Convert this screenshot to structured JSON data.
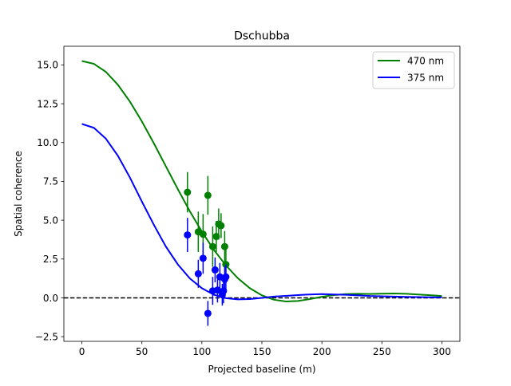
{
  "chart_data": {
    "type": "line",
    "title": "Dschubba",
    "xlabel": "Projected baseline (m)",
    "ylabel": "Spatial coherence",
    "xlim": [
      -15,
      315
    ],
    "ylim": [
      -2.8,
      16.2
    ],
    "xticks": [
      0,
      50,
      100,
      150,
      200,
      250,
      300
    ],
    "yticks": [
      -2.5,
      0.0,
      2.5,
      5.0,
      7.5,
      10.0,
      12.5,
      15.0
    ],
    "xtick_labels": [
      "0",
      "50",
      "100",
      "150",
      "200",
      "250",
      "300"
    ],
    "ytick_labels": [
      "−2.5",
      "0.0",
      "2.5",
      "5.0",
      "7.5",
      "10.0",
      "12.5",
      "15.0"
    ],
    "grid": false,
    "legend_position": "upper right",
    "reference_line": {
      "y": 0,
      "style": "dashed",
      "color": "#000000"
    },
    "series": [
      {
        "name": "470 nm",
        "color": "#008000",
        "model_curve": {
          "x": [
            0,
            10,
            20,
            30,
            40,
            50,
            60,
            70,
            80,
            90,
            100,
            110,
            120,
            130,
            140,
            150,
            160,
            170,
            180,
            190,
            200,
            210,
            220,
            230,
            240,
            250,
            260,
            270,
            280,
            290,
            300
          ],
          "y": [
            15.25,
            15.07,
            14.55,
            13.72,
            12.64,
            11.36,
            9.95,
            8.47,
            6.99,
            5.57,
            4.26,
            3.09,
            2.09,
            1.26,
            0.62,
            0.16,
            -0.12,
            -0.23,
            -0.2,
            -0.08,
            0.07,
            0.18,
            0.24,
            0.26,
            0.25,
            0.27,
            0.28,
            0.26,
            0.22,
            0.17,
            0.12
          ]
        },
        "points": [
          {
            "x": 88,
            "y": 6.8,
            "err": 1.3
          },
          {
            "x": 97,
            "y": 4.25,
            "err": 1.3
          },
          {
            "x": 101,
            "y": 4.1,
            "err": 1.3
          },
          {
            "x": 105,
            "y": 6.6,
            "err": 1.25
          },
          {
            "x": 109,
            "y": 3.3,
            "err": 1.3
          },
          {
            "x": 112,
            "y": 3.95,
            "err": 1.0
          },
          {
            "x": 114,
            "y": 4.75,
            "err": 1.0
          },
          {
            "x": 116,
            "y": 4.65,
            "err": 0.8
          },
          {
            "x": 119,
            "y": 3.3,
            "err": 1.0
          },
          {
            "x": 120,
            "y": 2.15,
            "err": 1.2
          }
        ]
      },
      {
        "name": "375 nm",
        "color": "#0000ff",
        "model_curve": {
          "x": [
            0,
            10,
            20,
            30,
            40,
            50,
            60,
            70,
            80,
            90,
            100,
            110,
            120,
            130,
            140,
            150,
            160,
            170,
            180,
            190,
            200,
            210,
            220,
            230,
            240,
            250,
            260,
            270,
            280,
            290,
            300
          ],
          "y": [
            11.2,
            10.95,
            10.25,
            9.15,
            7.75,
            6.2,
            4.7,
            3.3,
            2.15,
            1.25,
            0.62,
            0.2,
            -0.02,
            -0.1,
            -0.08,
            0.0,
            0.08,
            0.13,
            0.18,
            0.22,
            0.24,
            0.22,
            0.2,
            0.16,
            0.12,
            0.1,
            0.08,
            0.06,
            0.05,
            0.04,
            0.03
          ]
        },
        "points": [
          {
            "x": 88,
            "y": 4.05,
            "err": 1.1
          },
          {
            "x": 97,
            "y": 1.55,
            "err": 0.9
          },
          {
            "x": 101,
            "y": 2.55,
            "err": 1.0
          },
          {
            "x": 105,
            "y": -1.0,
            "err": 0.8
          },
          {
            "x": 109,
            "y": 0.45,
            "err": 0.9
          },
          {
            "x": 111,
            "y": 1.8,
            "err": 0.8
          },
          {
            "x": 113,
            "y": 0.5,
            "err": 0.8
          },
          {
            "x": 115,
            "y": 1.35,
            "err": 0.9
          },
          {
            "x": 117,
            "y": 0.2,
            "err": 0.7
          },
          {
            "x": 118,
            "y": 0.45,
            "err": 0.8
          },
          {
            "x": 119,
            "y": 1.2,
            "err": 0.8
          },
          {
            "x": 120,
            "y": 1.35,
            "err": 0.8
          }
        ]
      }
    ]
  }
}
